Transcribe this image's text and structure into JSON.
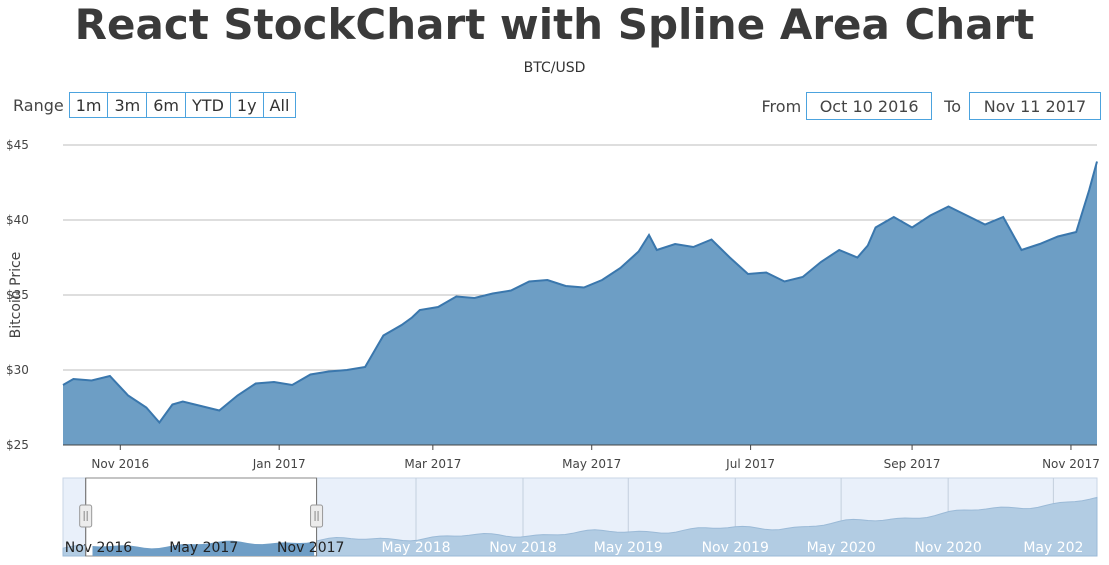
{
  "title": "React StockChart with Spline Area Chart",
  "subtitle": "BTC/USD",
  "range_selector": {
    "label": "Range",
    "buttons": [
      "1m",
      "3m",
      "6m",
      "YTD",
      "1y",
      "All"
    ]
  },
  "input_fields": {
    "from_label": "From",
    "from_value": "Oct 10 2016",
    "to_label": "To",
    "to_value": "Nov 11 2017"
  },
  "colors": {
    "area_fill": "#6d9ec5",
    "line": "#3a77ad",
    "navigator_fill": "#b2cce3",
    "navigator_bg": "#e9f0fa",
    "navigator_selected": "#6f9ec6",
    "input_border": "#4ca3de"
  },
  "chart_data": {
    "type": "area",
    "title": "React StockChart with Spline Area Chart",
    "subtitle": "BTC/USD",
    "ylabel": "Bitcoin Price",
    "y_tick_labels": [
      "$25",
      "$30",
      "$35",
      "$40",
      "$45"
    ],
    "x_tick_labels": [
      "Nov 2016",
      "Jan 2017",
      "Mar 2017",
      "May 2017",
      "Jul 2017",
      "Sep 2017",
      "Nov 2017"
    ],
    "xlim": [
      "2016-10-10",
      "2017-11-11"
    ],
    "ylim": [
      25,
      45
    ],
    "grid": true,
    "series": [
      {
        "x": [
          "2016-10-10",
          "2016-10-14",
          "2016-10-21",
          "2016-10-28",
          "2016-11-04",
          "2016-11-11",
          "2016-11-16",
          "2016-11-21",
          "2016-11-25",
          "2016-12-02",
          "2016-12-09",
          "2016-12-16",
          "2016-12-23",
          "2016-12-30",
          "2017-01-06",
          "2017-01-13",
          "2017-01-20",
          "2017-01-27",
          "2017-02-03",
          "2017-02-10",
          "2017-02-17",
          "2017-02-21",
          "2017-02-24",
          "2017-03-03",
          "2017-03-10",
          "2017-03-17",
          "2017-03-24",
          "2017-03-31",
          "2017-04-07",
          "2017-04-14",
          "2017-04-21",
          "2017-04-28",
          "2017-05-05",
          "2017-05-12",
          "2017-05-19",
          "2017-05-23",
          "2017-05-26",
          "2017-06-02",
          "2017-06-09",
          "2017-06-16",
          "2017-06-23",
          "2017-06-30",
          "2017-07-07",
          "2017-07-14",
          "2017-07-21",
          "2017-07-28",
          "2017-08-04",
          "2017-08-11",
          "2017-08-15",
          "2017-08-18",
          "2017-08-25",
          "2017-09-01",
          "2017-09-08",
          "2017-09-15",
          "2017-09-22",
          "2017-09-29",
          "2017-10-06",
          "2017-10-13",
          "2017-10-20",
          "2017-10-27",
          "2017-11-03",
          "2017-11-08",
          "2017-11-11"
        ],
        "values": [
          29.0,
          29.4,
          29.3,
          29.6,
          28.3,
          27.5,
          26.5,
          27.7,
          27.9,
          27.6,
          27.3,
          28.3,
          29.1,
          29.2,
          29.0,
          29.7,
          29.9,
          30.0,
          30.2,
          32.3,
          33.0,
          33.5,
          34.0,
          34.2,
          34.9,
          34.8,
          35.1,
          35.3,
          35.9,
          36.0,
          35.6,
          35.5,
          36.0,
          36.8,
          37.9,
          39.0,
          38.0,
          38.4,
          38.2,
          38.7,
          37.5,
          36.4,
          36.5,
          35.9,
          36.2,
          37.2,
          38.0,
          37.5,
          38.3,
          39.5,
          40.2,
          39.5,
          40.3,
          40.9,
          40.3,
          39.7,
          40.2,
          38.0,
          38.4,
          38.9,
          39.2,
          42.0,
          43.9
        ]
      }
    ],
    "navigator": {
      "x_tick_labels": [
        "Nov 2016",
        "May 2017",
        "Nov 2017",
        "May 2018",
        "Nov 2018",
        "May 2019",
        "Nov 2019",
        "May 2020",
        "Nov 2020",
        "May 202"
      ],
      "selected_range": [
        "2016-10-10",
        "2017-11-11"
      ]
    }
  }
}
